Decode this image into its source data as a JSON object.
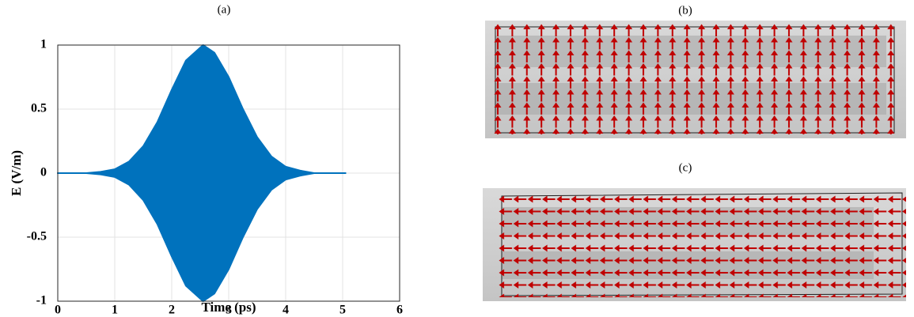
{
  "chart_data": {
    "type": "area",
    "title": "(a)",
    "x_label": "Time (ps)",
    "y_label": "E (V/m)",
    "x": [
      0,
      0.25,
      0.5,
      0.75,
      1,
      1.25,
      1.5,
      1.75,
      2,
      2.25,
      2.55,
      2.75,
      3,
      3.25,
      3.5,
      3.75,
      4,
      4.25,
      4.5,
      4.75,
      5.05
    ],
    "series": [
      {
        "color": "#0072bd",
        "values": [
          0,
          0,
          0,
          0.01,
          0.03,
          0.09,
          0.21,
          0.4,
          0.65,
          0.88,
          1,
          0.94,
          0.75,
          0.5,
          0.28,
          0.13,
          0.05,
          0.02,
          0,
          0,
          0
        ]
      },
      {
        "color": "#0072bd",
        "values": [
          0,
          0,
          0,
          -0.01,
          -0.03,
          -0.09,
          -0.21,
          -0.4,
          -0.65,
          -0.88,
          -1,
          -0.94,
          -0.75,
          -0.5,
          -0.28,
          -0.13,
          -0.05,
          -0.02,
          0,
          0,
          0
        ]
      }
    ],
    "xlim": [
      0,
      6
    ],
    "ylim": [
      -1,
      1
    ],
    "xticks": [
      0,
      1,
      2,
      3,
      4,
      5,
      6
    ],
    "yticks": [
      -1,
      -0.5,
      0,
      0.5,
      1
    ],
    "grid": true
  },
  "panels": [
    {
      "label": "(b)"
    },
    {
      "label": "(c)"
    }
  ]
}
